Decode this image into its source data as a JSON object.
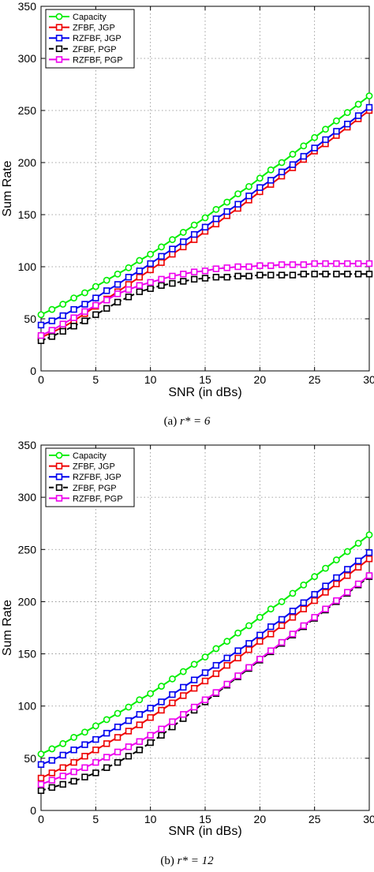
{
  "figure": {
    "subplots": [
      {
        "caption_prefix": "(a)",
        "caption_math": "r* = 6"
      },
      {
        "caption_prefix": "(b)",
        "caption_math": "r* = 12"
      }
    ]
  },
  "colors": {
    "capacity": "#00ee00",
    "zfbf_jgp": "#ee0000",
    "rzfbf_jgp": "#0000ee",
    "zfbf_pgp": "#000000",
    "rzfbf_pgp": "#ee00ee",
    "grid": "#888888"
  },
  "chart_data": [
    {
      "type": "line",
      "title": "",
      "xlabel": "SNR (in dBs)",
      "ylabel": "Sum Rate",
      "xlim": [
        0,
        30
      ],
      "ylim": [
        0,
        350
      ],
      "xticks": [
        "0",
        "5",
        "10",
        "15",
        "20",
        "25",
        "30"
      ],
      "yticks": [
        "0",
        "50",
        "100",
        "150",
        "200",
        "250",
        "300",
        "350"
      ],
      "grid": true,
      "legend_position": "top-left",
      "x": [
        0,
        1,
        2,
        3,
        4,
        5,
        6,
        7,
        8,
        9,
        10,
        11,
        12,
        13,
        14,
        15,
        16,
        17,
        18,
        19,
        20,
        21,
        22,
        23,
        24,
        25,
        26,
        27,
        28,
        29,
        30
      ],
      "series": [
        {
          "name": "Capacity",
          "color_key": "capacity",
          "marker": "circle",
          "dashed": false,
          "values": [
            54,
            59,
            64,
            70,
            75,
            81,
            87,
            93,
            99,
            106,
            112,
            119,
            126,
            133,
            140,
            147,
            155,
            162,
            170,
            177,
            185,
            193,
            200,
            208,
            216,
            224,
            232,
            240,
            248,
            256,
            264
          ]
        },
        {
          "name": "ZFBF, JGP",
          "color_key": "zfbf_jgp",
          "marker": "square",
          "dashed": false,
          "values": [
            32,
            37,
            42,
            48,
            55,
            62,
            69,
            76,
            83,
            90,
            97,
            104,
            112,
            119,
            126,
            134,
            141,
            149,
            156,
            164,
            172,
            179,
            187,
            195,
            203,
            211,
            218,
            226,
            234,
            242,
            250
          ]
        },
        {
          "name": "RZFBF, JGP",
          "color_key": "rzfbf_jgp",
          "marker": "square",
          "dashed": false,
          "values": [
            44,
            48,
            53,
            59,
            64,
            70,
            77,
            83,
            90,
            96,
            103,
            110,
            117,
            124,
            131,
            138,
            146,
            153,
            160,
            168,
            176,
            183,
            191,
            198,
            206,
            214,
            222,
            230,
            237,
            245,
            253
          ]
        },
        {
          "name": "ZFBF, PGP",
          "color_key": "zfbf_pgp",
          "marker": "square",
          "dashed": true,
          "values": [
            29,
            33,
            38,
            43,
            48,
            54,
            60,
            66,
            71,
            76,
            79,
            82,
            84,
            86,
            88,
            89,
            90,
            90,
            91,
            91,
            92,
            92,
            92,
            92,
            93,
            93,
            93,
            93,
            93,
            93,
            93
          ]
        },
        {
          "name": "RZFBF, PGP",
          "color_key": "rzfbf_pgp",
          "marker": "square",
          "dashed": false,
          "values": [
            34,
            39,
            45,
            51,
            57,
            63,
            68,
            74,
            78,
            82,
            85,
            88,
            91,
            93,
            95,
            96,
            98,
            99,
            100,
            100,
            101,
            101,
            102,
            102,
            102,
            103,
            103,
            103,
            103,
            103,
            103
          ]
        }
      ]
    },
    {
      "type": "line",
      "title": "",
      "xlabel": "SNR (in dBs)",
      "ylabel": "Sum Rate",
      "xlim": [
        0,
        30
      ],
      "ylim": [
        0,
        350
      ],
      "xticks": [
        "0",
        "5",
        "10",
        "15",
        "20",
        "25",
        "30"
      ],
      "yticks": [
        "0",
        "50",
        "100",
        "150",
        "200",
        "250",
        "300",
        "350"
      ],
      "grid": true,
      "legend_position": "top-left",
      "x": [
        0,
        1,
        2,
        3,
        4,
        5,
        6,
        7,
        8,
        9,
        10,
        11,
        12,
        13,
        14,
        15,
        16,
        17,
        18,
        19,
        20,
        21,
        22,
        23,
        24,
        25,
        26,
        27,
        28,
        29,
        30
      ],
      "series": [
        {
          "name": "Capacity",
          "color_key": "capacity",
          "marker": "circle",
          "dashed": false,
          "values": [
            54,
            59,
            64,
            70,
            75,
            81,
            87,
            93,
            99,
            106,
            112,
            119,
            126,
            133,
            140,
            147,
            155,
            162,
            170,
            177,
            185,
            193,
            200,
            208,
            216,
            224,
            232,
            240,
            248,
            256,
            264
          ]
        },
        {
          "name": "ZFBF, JGP",
          "color_key": "zfbf_jgp",
          "marker": "square",
          "dashed": false,
          "values": [
            31,
            36,
            41,
            46,
            52,
            58,
            64,
            70,
            76,
            82,
            89,
            96,
            103,
            110,
            117,
            124,
            131,
            139,
            146,
            154,
            162,
            169,
            177,
            185,
            193,
            201,
            209,
            217,
            225,
            233,
            241
          ]
        },
        {
          "name": "RZFBF, JGP",
          "color_key": "rzfbf_jgp",
          "marker": "square",
          "dashed": false,
          "values": [
            44,
            48,
            53,
            58,
            63,
            68,
            74,
            80,
            86,
            92,
            98,
            104,
            111,
            118,
            125,
            132,
            139,
            146,
            153,
            160,
            168,
            176,
            183,
            191,
            199,
            207,
            215,
            223,
            231,
            239,
            247
          ]
        },
        {
          "name": "ZFBF, PGP",
          "color_key": "zfbf_pgp",
          "marker": "square",
          "dashed": true,
          "values": [
            19,
            22,
            25,
            28,
            32,
            36,
            41,
            46,
            52,
            58,
            65,
            72,
            80,
            88,
            96,
            104,
            112,
            120,
            128,
            136,
            144,
            152,
            160,
            168,
            176,
            184,
            192,
            200,
            208,
            216,
            224
          ]
        },
        {
          "name": "RZFBF, PGP",
          "color_key": "rzfbf_pgp",
          "marker": "square",
          "dashed": false,
          "values": [
            25,
            29,
            33,
            37,
            41,
            46,
            51,
            56,
            61,
            66,
            72,
            78,
            85,
            92,
            99,
            106,
            113,
            121,
            129,
            137,
            145,
            153,
            161,
            169,
            177,
            185,
            193,
            201,
            209,
            217,
            225
          ]
        }
      ]
    }
  ]
}
